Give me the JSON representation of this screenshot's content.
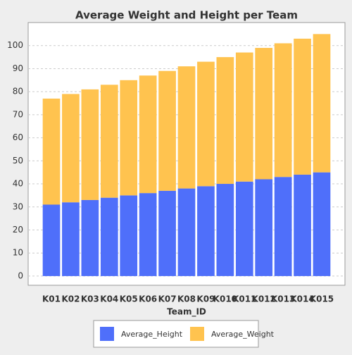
{
  "chart_data": {
    "type": "stacked_bar",
    "title": "Average Weight and Height per Team",
    "x_label": "Team_ID",
    "categories": [
      "K01",
      "K02",
      "K03",
      "K04",
      "K05",
      "K06",
      "K07",
      "K08",
      "K09",
      "K010",
      "K011",
      "K012",
      "K013",
      "K014",
      "K015"
    ],
    "series": [
      {
        "name": "Average_Height",
        "color": "#4f6ffa",
        "values": [
          31,
          32,
          33,
          34,
          35,
          36,
          37,
          38,
          39,
          40,
          41,
          42,
          43,
          44,
          45
        ]
      },
      {
        "name": "Average_Weight",
        "color": "#ffc34f",
        "values": [
          46,
          47,
          48,
          49,
          50,
          51,
          52,
          53,
          54,
          55,
          56,
          57,
          58,
          59,
          60
        ]
      }
    ],
    "ylim": [
      -4,
      110
    ],
    "yticks": [
      0,
      10,
      20,
      30,
      40,
      50,
      60,
      70,
      80,
      90,
      100
    ],
    "grid": true,
    "legend": "bottom"
  }
}
